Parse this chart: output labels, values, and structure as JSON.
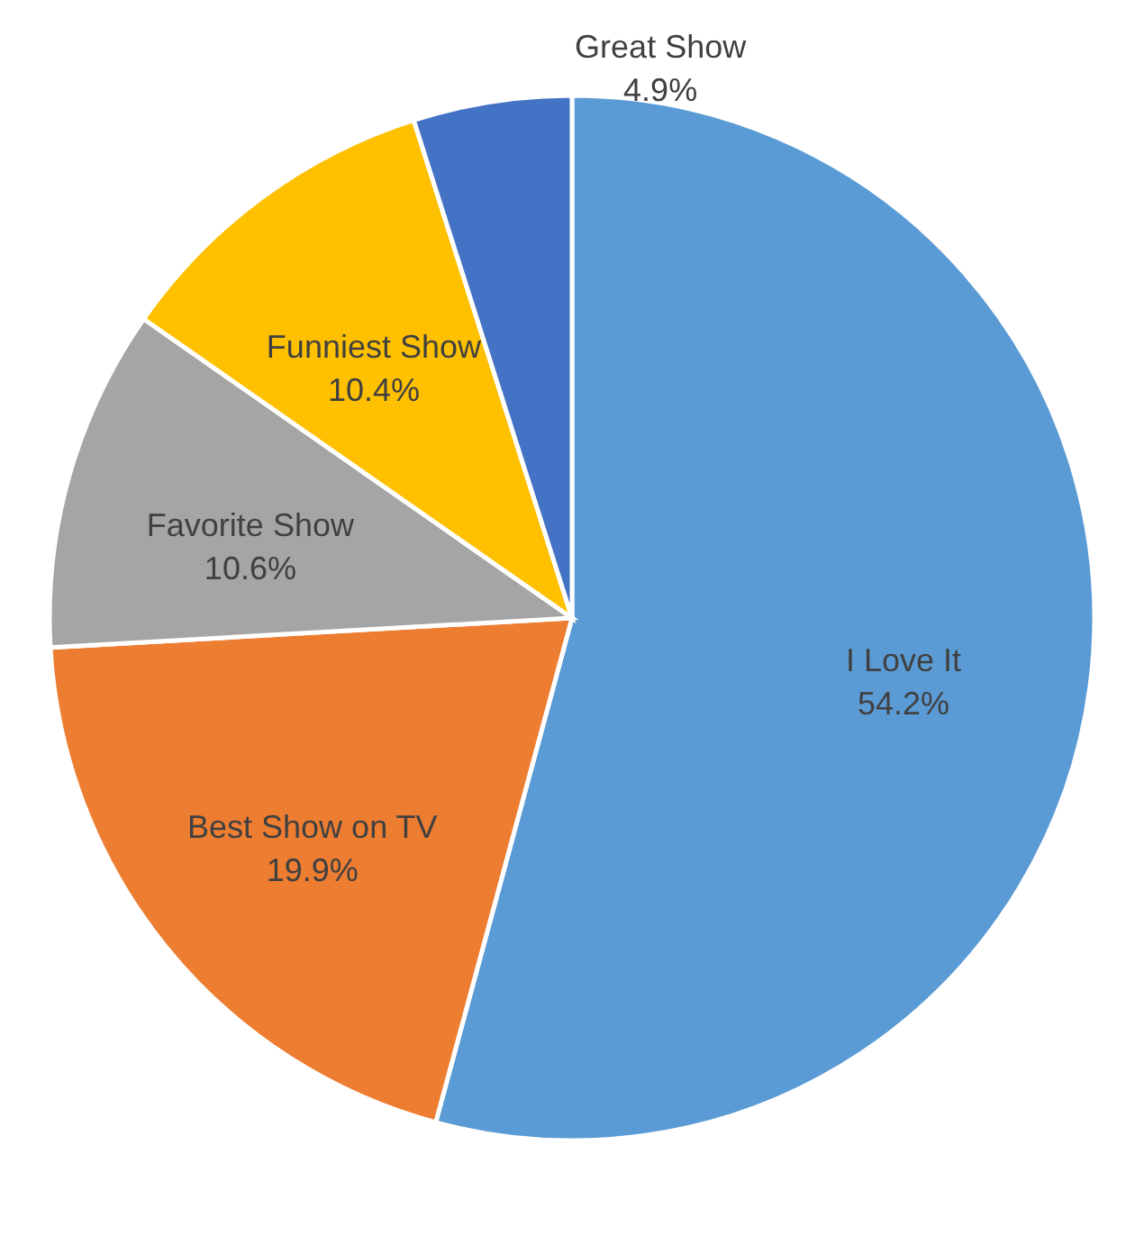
{
  "chart_data": {
    "type": "pie",
    "categories": [
      "I Love It",
      "Best Show on TV",
      "Favorite Show",
      "Funniest Show",
      "Great Show"
    ],
    "values": [
      54.2,
      19.9,
      10.6,
      10.4,
      4.9
    ],
    "value_labels": [
      "54.2%",
      "19.9%",
      "10.6%",
      "10.4%",
      "4.9%"
    ],
    "colors": [
      "#5b9bd5",
      "#ed7d31",
      "#a5a5a5",
      "#ffc000",
      "#4472c4"
    ]
  }
}
